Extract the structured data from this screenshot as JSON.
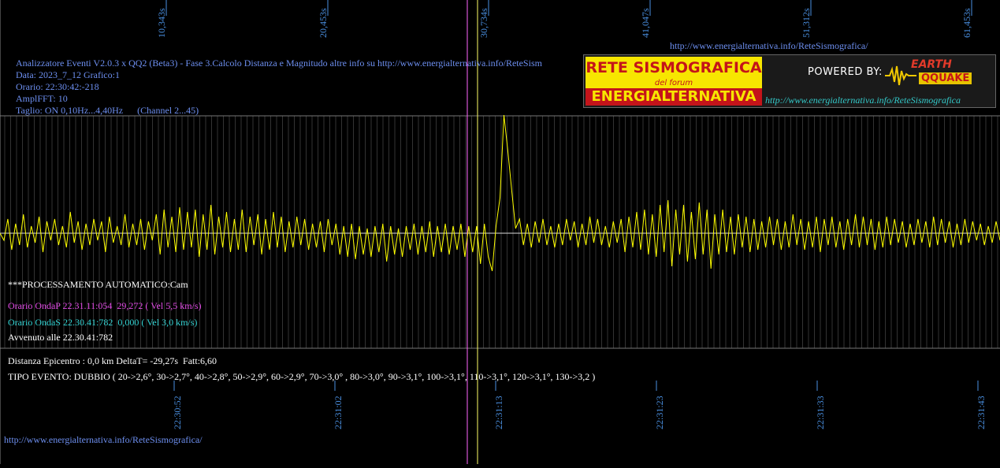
{
  "header": {
    "title_line": "Analizzatore Eventi V2.0.3 x QQ2 (Beta3) - Fase 3.Calcolo Distanza e Magnitudo altre info su http://www.energialternativa.info/ReteSism",
    "data_line": "Data: 2023_7_12 Grafico:1",
    "orario_line": "Orario: 22:30:42:-218",
    "ampl_line": "AmplFFT: 10",
    "taglio_line": "Taglio: ON 0,10Hz...4,40Hz      (Channel 2...45)",
    "top_url": "http://www.energialternativa.info/ReteSismografica/"
  },
  "logo": {
    "rete_text": "RETE SISMOGRAFICA",
    "forum_text": "del forum",
    "energ_text": "ENERGIALTERNATIVA",
    "powered_text": "POWERED BY:",
    "earth_text": "EARTH",
    "qq_text": "QQUAKE",
    "url": "http://www.energialternativa.info/ReteSismografica"
  },
  "info": {
    "processing": "***PROCESSAMENTO AUTOMATICO:Cam",
    "onda_p": "Orario OndaP 22.31.11:054  29,272 ( Vel 5,5 km/s)",
    "onda_s": "Orario OndaS 22.30.41:782  0,000 ( Vel 3,0 km/s)",
    "avvenuto": "Avvenuto alle 22.30.41:782",
    "distanza": "Distanza Epicentro : 0,0 km DeltaT= -29,27s  Fatt:6,60",
    "tipo_evento": "TIPO EVENTO: DUBBIO ( 20->2,6°, 30->2,7°, 40->2,8°, 50->2,9°, 60->2,9°, 70->3,0° , 80->3,0°, 90->3,1°, 100->3,1°, 110->3,1°, 120->3,1°, 130->3,2 )"
  },
  "footer": {
    "url": "http://www.energialternativa.info/ReteSismografica/"
  },
  "colors": {
    "background": "#000000",
    "trace": "#ffff00",
    "grid": "#777777",
    "tick_label": "#4a90e2",
    "marker_p": "#ffff66",
    "marker_s": "#ff66ff"
  },
  "chart_data": {
    "type": "line",
    "series": [
      {
        "values": [
          0,
          -0.3,
          0.6,
          -0.7,
          0.4,
          -0.5,
          0.8,
          -0.6,
          0.3,
          -0.4,
          0.7,
          -0.8,
          0.5,
          -0.3,
          0.6,
          -0.5,
          0.3,
          -0.6,
          0.9,
          -0.4,
          0.5,
          -0.7,
          0.4,
          -0.5,
          0.6,
          -0.3,
          0.5,
          -0.8,
          0.7,
          -0.4,
          0.3,
          -0.5,
          0.8,
          -0.6,
          0.4,
          -0.5,
          0.6,
          -0.7,
          0.5,
          -0.3,
          0.8,
          -0.9,
          1.0,
          -0.6,
          0.7,
          -0.8,
          1.1,
          -0.7,
          0.9,
          -0.6,
          1.0,
          -1.0,
          0.8,
          -0.7,
          1.2,
          -0.9,
          0.7,
          -0.6,
          0.9,
          -0.8,
          0.6,
          -0.7,
          1.0,
          -0.8,
          0.7,
          -0.5,
          0.8,
          -0.9,
          0.6,
          -0.7,
          0.9,
          -0.6,
          0.7,
          -0.8,
          0.5,
          -0.6,
          0.7,
          -0.5,
          0.6,
          -0.7,
          0.4,
          -0.6,
          0.5,
          -0.8,
          0.6,
          -0.5,
          0.4,
          -0.9,
          0.3,
          -1.0,
          0.4,
          -1.1,
          0.3,
          -0.9,
          0.2,
          -1.0,
          0.3,
          -0.8,
          0.4,
          -1.2,
          0.3,
          -0.9,
          0.2,
          -1.0,
          0.3,
          -0.7,
          0.4,
          -0.9,
          0.3,
          -0.8,
          0.5,
          -1.0,
          0.3,
          -0.8,
          0.4,
          -0.9,
          0.3,
          -0.7,
          0.4,
          -1.0,
          0.3,
          -0.8,
          0.3,
          -1.3,
          0.4,
          -1.0,
          -1.6,
          0.3,
          1.5,
          5.0,
          3.5,
          1.8,
          0.2,
          0.6,
          -0.5,
          0.4,
          -0.6,
          0.5,
          -0.4,
          0.6,
          -0.5,
          0.3,
          -0.6,
          0.4,
          -0.5,
          0.6,
          -0.3,
          0.5,
          -0.6,
          0.4,
          -0.5,
          0.7,
          -0.4,
          0.6,
          -0.5,
          0.3,
          -0.6,
          0.5,
          -0.4,
          0.6,
          -0.8,
          0.7,
          -0.6,
          0.9,
          -0.7,
          1.0,
          -0.9,
          0.8,
          -1.0,
          1.2,
          -0.8,
          1.4,
          -1.4,
          1.0,
          -0.9,
          1.2,
          -1.2,
          0.9,
          -1.1,
          1.3,
          -0.9,
          1.0,
          -1.5,
          0.8,
          -0.9,
          1.0,
          -0.8,
          0.7,
          -0.9,
          0.8,
          -0.6,
          0.7,
          -0.8,
          0.6,
          -0.7,
          0.5,
          -0.6,
          0.7,
          -0.5,
          0.6,
          -0.7,
          0.5,
          -0.6,
          0.8,
          -0.5,
          0.6,
          -0.7,
          0.5,
          -0.6,
          0.7,
          -0.8,
          0.6,
          -0.5,
          0.7,
          -0.6,
          0.5,
          -0.7,
          0.6,
          -0.5,
          0.8,
          -0.6,
          0.7,
          -0.5,
          0.6,
          -0.7,
          0.5,
          -0.6,
          0.7,
          -0.5,
          0.6,
          -0.4,
          0.5,
          -0.6,
          0.4,
          -0.5,
          0.6,
          -0.4,
          0.5,
          -0.6,
          0.7,
          -0.5,
          0.6,
          -0.4,
          0.5,
          -0.6,
          0.4,
          -0.5,
          0.6,
          -0.4,
          0.5,
          -0.3,
          0.4,
          -0.5,
          0.3,
          -0.4,
          0.5,
          -0.3
        ]
      }
    ],
    "top_tick_labels": [
      "10,343s",
      "20,453s",
      "30,734s",
      "41,047s",
      "51,312s",
      "61,453s"
    ],
    "bottom_tick_labels": [
      "22:30:52",
      "22:31:02",
      "22:31:13",
      "22:31:23",
      "22:31:33",
      "22:31:43"
    ],
    "grid": true,
    "legend": "none"
  }
}
